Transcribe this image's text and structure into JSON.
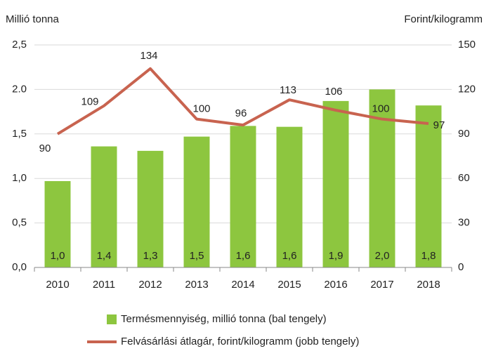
{
  "chart_data": {
    "type": "bar_line",
    "ylabel": "Millió tonna",
    "y2label": "Forint/kilogramm",
    "categories": [
      "2010",
      "2011",
      "2012",
      "2013",
      "2014",
      "2015",
      "2016",
      "2017",
      "2018"
    ],
    "series": [
      {
        "name": "Termésmennyiség, millió tonna (bal tengely)",
        "type": "bar",
        "color": "#8dc63f",
        "values": [
          0.97,
          1.36,
          1.31,
          1.47,
          1.59,
          1.58,
          1.87,
          2.0,
          1.82
        ],
        "value_labels": [
          "1,0",
          "1,4",
          "1,3",
          "1,5",
          "1,6",
          "1,6",
          "1,9",
          "2,0",
          "1,8"
        ]
      },
      {
        "name": "Felvásárlási átlagár, forint/kilogramm (jobb tengely)",
        "type": "line",
        "color": "#c8634f",
        "axis": "y2",
        "values": [
          90,
          109,
          134,
          100,
          96,
          113,
          106,
          100,
          97
        ]
      }
    ],
    "ylim": [
      0,
      2.5
    ],
    "yticks": [
      {
        "value": 0,
        "label": "0,0"
      },
      {
        "value": 0.5,
        "label": "0,5"
      },
      {
        "value": 1,
        "label": "1,0"
      },
      {
        "value": 1.5,
        "label": "1,5"
      },
      {
        "value": 2,
        "label": "2.0"
      },
      {
        "value": 2.5,
        "label": "2,5"
      }
    ],
    "y2lim": [
      0,
      150
    ],
    "y2ticks": [
      0,
      30,
      60,
      90,
      120,
      150
    ],
    "grid": true
  }
}
